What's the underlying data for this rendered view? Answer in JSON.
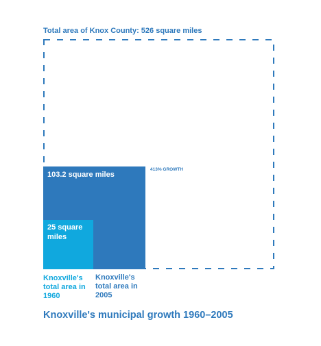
{
  "county": {
    "label": "Total area of Knox County: 526 square miles",
    "area_sq_miles": 526
  },
  "area_2005": {
    "inner_label": "103.2 square miles",
    "value_sq_miles": 103.2,
    "caption": "Knoxville's total area in 2005"
  },
  "area_1960": {
    "inner_label": "25 square miles",
    "value_sq_miles": 25,
    "caption": "Knoxville's total area in 1960"
  },
  "growth_label": "413% GROWTH",
  "title": "Knoxville's municipal growth 1960–2005",
  "colors": {
    "dark_blue": "#2e79bc",
    "light_blue": "#10a8de",
    "text_on_fill": "#ffffff"
  }
}
